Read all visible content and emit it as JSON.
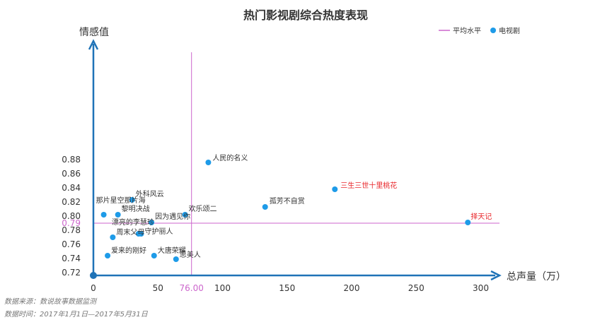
{
  "chart_data": {
    "type": "scatter",
    "title": "热门影视剧综合热度表现",
    "xlabel": "总声量（万）",
    "ylabel": "情感值",
    "xlim": [
      0,
      310
    ],
    "ylim": [
      0.72,
      0.88
    ],
    "x_ticks": [
      "0",
      "50",
      "100",
      "150",
      "200",
      "250",
      "300"
    ],
    "y_ticks": [
      "0.72",
      "0.74",
      "0.76",
      "0.78",
      "0.80",
      "0.82",
      "0.84",
      "0.86",
      "0.88"
    ],
    "average_line": {
      "name": "平均水平",
      "x": 76,
      "y": 0.79,
      "x_label": "76.00",
      "y_label": "0.79",
      "color": "#cc66cc"
    },
    "legend": {
      "position": "top-right",
      "items": [
        {
          "label": "平均水平",
          "marker": "line",
          "color": "#cc66cc"
        },
        {
          "label": "电视剧",
          "marker": "dot",
          "color": "#1e9be8"
        }
      ]
    },
    "series": [
      {
        "name": "电视剧",
        "color": "#1e9be8",
        "points": [
          {
            "label": "人民的名义",
            "x": 89,
            "y": 0.876,
            "highlight": false
          },
          {
            "label": "三生三世十里桃花",
            "x": 187,
            "y": 0.838,
            "highlight": true
          },
          {
            "label": "孤芳不自赏",
            "x": 133,
            "y": 0.813,
            "highlight": false
          },
          {
            "label": "外科风云",
            "x": 30,
            "y": 0.823,
            "highlight": false
          },
          {
            "label": "那片星空那片海",
            "x": 8,
            "y": 0.802,
            "highlight": false
          },
          {
            "label": "黎明决战",
            "x": 19,
            "y": 0.802,
            "highlight": false
          },
          {
            "label": "欢乐颂二",
            "x": 71,
            "y": 0.802,
            "highlight": false
          },
          {
            "label": "因为遇见你",
            "x": 45,
            "y": 0.791,
            "highlight": false
          },
          {
            "label": "择天记",
            "x": 290,
            "y": 0.791,
            "highlight": true
          },
          {
            "label": "漂亮的李慧珍",
            "x": 35,
            "y": 0.775,
            "highlight": false
          },
          {
            "label": "守护丽人",
            "x": 37,
            "y": 0.775,
            "highlight": false
          },
          {
            "label": "周末父母",
            "x": 15,
            "y": 0.77,
            "highlight": false
          },
          {
            "label": "爱来的刚好",
            "x": 11,
            "y": 0.744,
            "highlight": false
          },
          {
            "label": "大唐荣耀",
            "x": 47,
            "y": 0.744,
            "highlight": false
          },
          {
            "label": "思美人",
            "x": 64,
            "y": 0.739,
            "highlight": false
          }
        ]
      }
    ],
    "colors": {
      "axis": "#1f73b7",
      "point": "#1e9be8",
      "highlight_label": "#e8262a",
      "average": "#cc66cc"
    }
  },
  "footnotes": {
    "source": "数据来源：数说故事数据监测",
    "period": "数据时间：2017年1月1日—2017年5月31日"
  }
}
